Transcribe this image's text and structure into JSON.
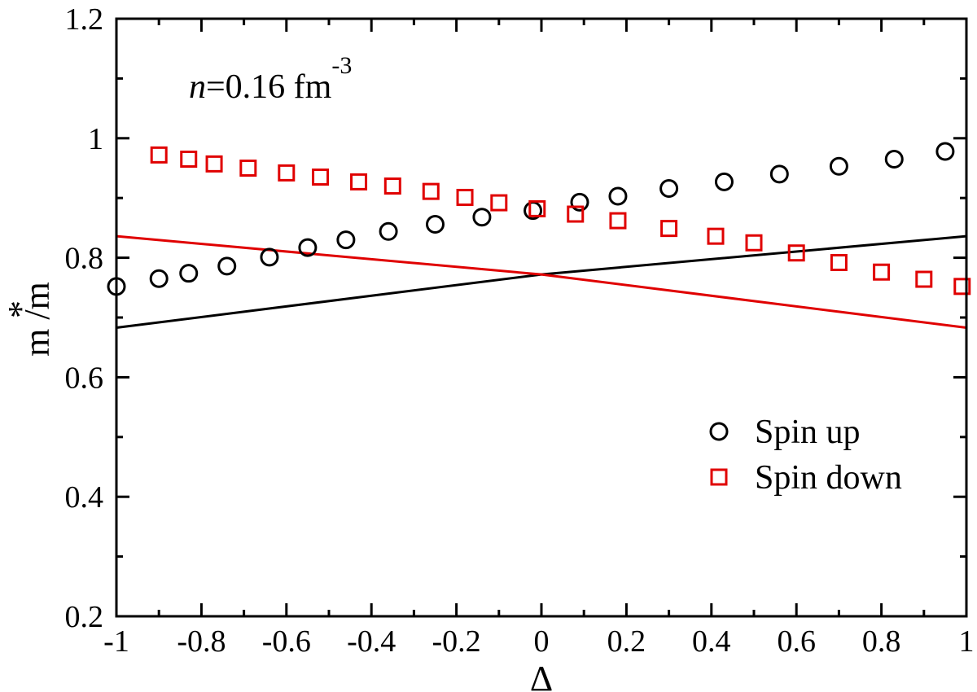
{
  "chart_data": {
    "type": "scatter",
    "title": "",
    "annotation": {
      "var": "n",
      "rest": "=0.16 fm",
      "sup": "-3"
    },
    "xlabel": "Δ",
    "ylabel": {
      "sup": "*",
      "main": "m /m"
    },
    "xlim": [
      -1,
      1
    ],
    "ylim": [
      0.2,
      1.2
    ],
    "x_major_ticks": [
      -1,
      -0.8,
      -0.6,
      -0.4,
      -0.2,
      0,
      0.2,
      0.4,
      0.6,
      0.8,
      1
    ],
    "x_tick_labels": [
      "-1",
      "-0.8",
      "-0.6",
      "-0.4",
      "-0.2",
      "0",
      "0.2",
      "0.4",
      "0.6",
      "0.8",
      "1"
    ],
    "y_major_ticks": [
      0.2,
      0.4,
      0.6,
      0.8,
      1.0,
      1.2
    ],
    "y_tick_labels": [
      "0.2",
      "0.4",
      "0.6",
      "0.8",
      "1",
      "1.2"
    ],
    "grid": false,
    "legend_position": "bottom-right",
    "series": [
      {
        "name": "Spin up",
        "kind": "markers",
        "marker": "circle",
        "color": "#000000",
        "x": [
          -1.0,
          -0.9,
          -0.83,
          -0.74,
          -0.64,
          -0.55,
          -0.46,
          -0.36,
          -0.25,
          -0.14,
          -0.02,
          0.09,
          0.18,
          0.3,
          0.43,
          0.56,
          0.7,
          0.83,
          0.95
        ],
        "y": [
          0.752,
          0.765,
          0.774,
          0.786,
          0.801,
          0.817,
          0.83,
          0.844,
          0.856,
          0.868,
          0.879,
          0.893,
          0.903,
          0.916,
          0.927,
          0.94,
          0.953,
          0.965,
          0.978
        ]
      },
      {
        "name": "Spin down",
        "kind": "markers",
        "marker": "square",
        "color": "#e00000",
        "x": [
          -0.9,
          -0.83,
          -0.77,
          -0.69,
          -0.6,
          -0.52,
          -0.43,
          -0.35,
          -0.26,
          -0.18,
          -0.1,
          -0.01,
          0.08,
          0.18,
          0.3,
          0.41,
          0.5,
          0.6,
          0.7,
          0.8,
          0.9,
          0.99
        ],
        "y": [
          0.972,
          0.965,
          0.957,
          0.95,
          0.942,
          0.935,
          0.927,
          0.92,
          0.911,
          0.901,
          0.892,
          0.882,
          0.873,
          0.862,
          0.849,
          0.836,
          0.825,
          0.808,
          0.792,
          0.776,
          0.764,
          0.752
        ]
      },
      {
        "name": "Spin up (line)",
        "kind": "line",
        "color": "#000000",
        "x": [
          -1,
          0,
          1
        ],
        "y": [
          0.683,
          0.772,
          0.836
        ]
      },
      {
        "name": "Spin down (line)",
        "kind": "line",
        "color": "#e00000",
        "x": [
          -1,
          0,
          1
        ],
        "y": [
          0.836,
          0.772,
          0.683
        ]
      }
    ],
    "legend": [
      {
        "label": "Spin up",
        "marker": "circle",
        "color": "#000000"
      },
      {
        "label": "Spin down",
        "marker": "square",
        "color": "#e00000"
      }
    ]
  }
}
